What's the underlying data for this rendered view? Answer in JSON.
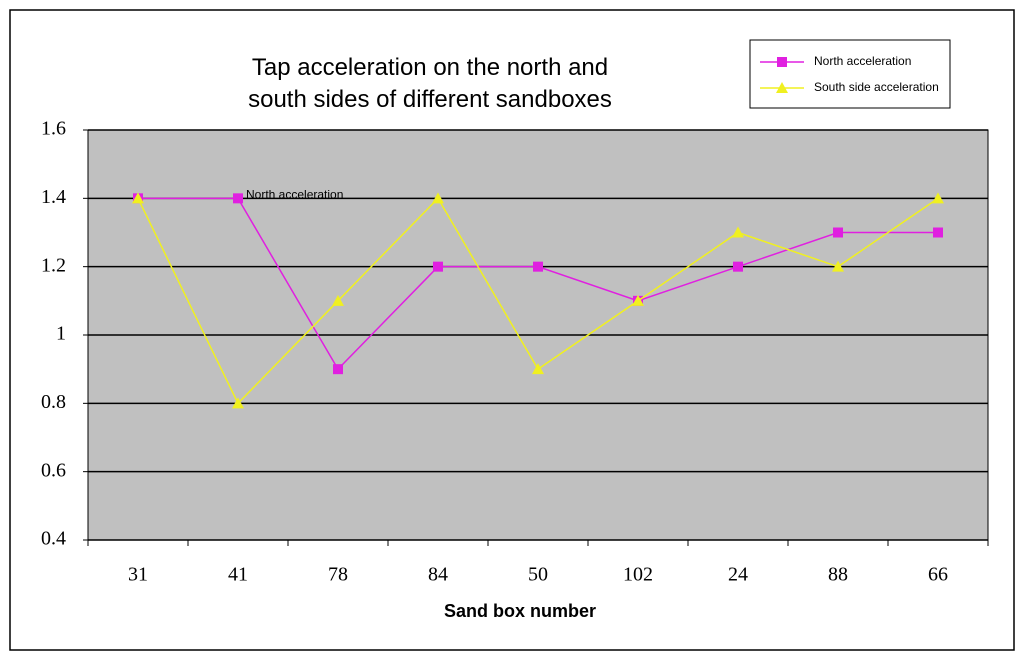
{
  "chart_data": {
    "type": "line",
    "title": "Tap acceleration on the north and south sides of different sandboxes",
    "x_label": "Sand box number",
    "categories": [
      "31",
      "41",
      "78",
      "84",
      "50",
      "102",
      "24",
      "88",
      "66"
    ],
    "series": [
      {
        "name": "North acceleration",
        "color": "#e020e0",
        "marker": "square",
        "values": [
          1.4,
          1.4,
          0.9,
          1.2,
          1.2,
          1.1,
          1.2,
          1.3,
          1.3
        ]
      },
      {
        "name": "South side acceleration",
        "color": "#f0f020",
        "marker": "triangle",
        "values": [
          1.4,
          0.8,
          1.1,
          1.4,
          0.9,
          1.1,
          1.3,
          1.2,
          1.4
        ]
      }
    ],
    "annotations": [
      "North acceleration"
    ],
    "ylim": [
      0.4,
      1.6
    ],
    "yticks": [
      0.4,
      0.6,
      0.8,
      1,
      1.2,
      1.4,
      1.6
    ],
    "grid": true,
    "plot_background": "#c0c0c0",
    "legend": "top-right"
  }
}
